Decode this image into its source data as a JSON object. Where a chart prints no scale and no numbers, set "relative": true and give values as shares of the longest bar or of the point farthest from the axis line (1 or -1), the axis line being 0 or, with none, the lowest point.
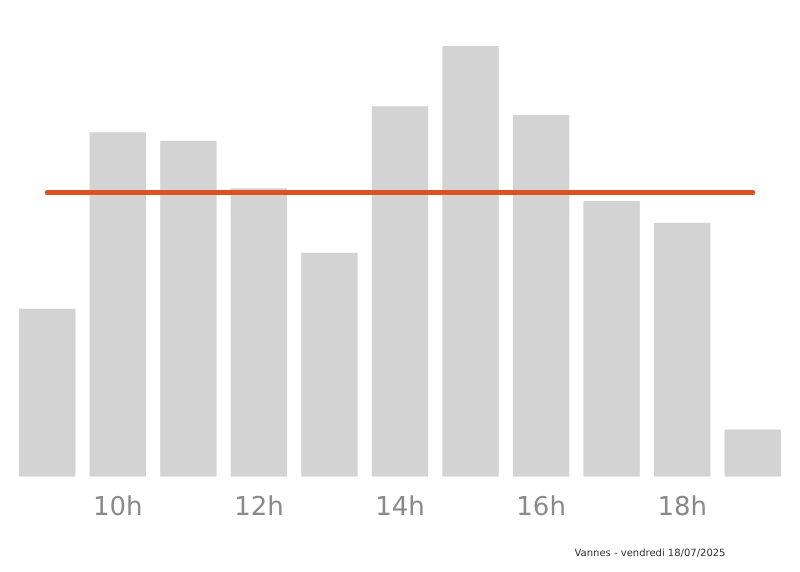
{
  "chart_data": {
    "type": "bar",
    "relative": true,
    "categories": [
      null,
      "10h",
      null,
      "12h",
      null,
      "14h",
      null,
      "16h",
      null,
      "18h",
      null
    ],
    "values": [
      0.39,
      0.8,
      0.78,
      0.67,
      0.52,
      0.86,
      1,
      0.84,
      0.64,
      0.59,
      0.11
    ],
    "color": "#d3d3d3",
    "ref_lines": [
      {
        "axis": "y",
        "value": 0.66,
        "color": "#d9541e"
      }
    ],
    "grid": false,
    "legend": false,
    "annotations": [
      "Vannes - vendredi 18/07/2025"
    ]
  }
}
